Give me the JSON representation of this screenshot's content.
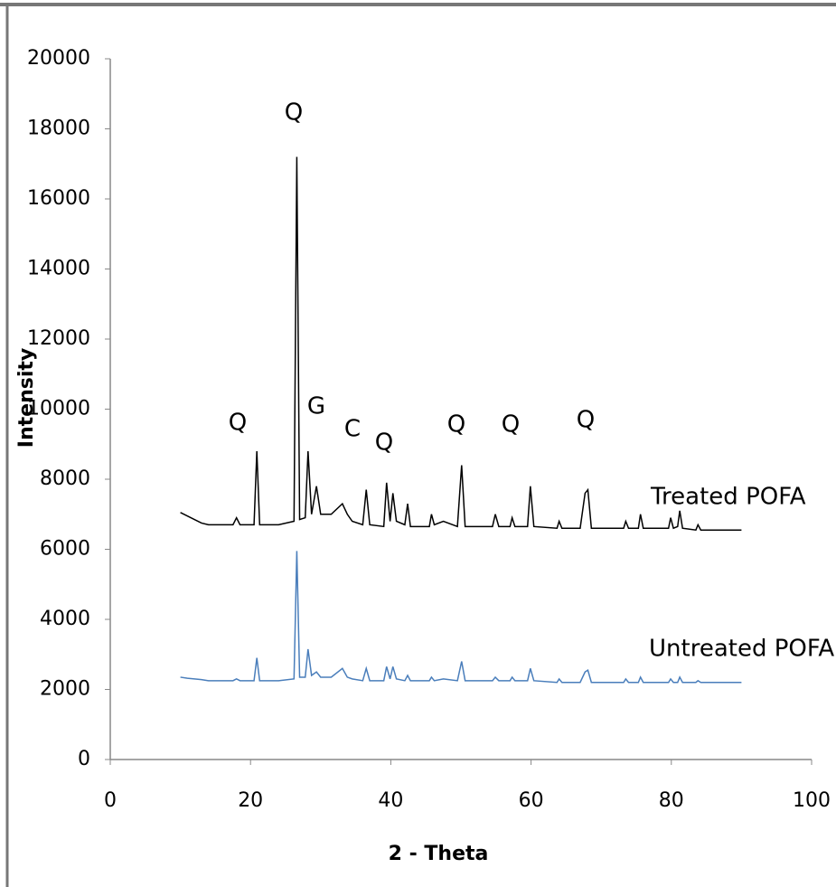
{
  "chart_data": {
    "type": "line",
    "xlabel": "2 - Theta",
    "ylabel": "Intensity",
    "x": [
      10,
      11,
      12,
      13,
      14,
      16,
      17.5,
      18,
      18.5,
      20.5,
      20.9,
      21.3,
      24,
      26.2,
      26.6,
      27,
      27.8,
      28.2,
      28.7,
      29.4,
      30,
      31.5,
      33.1,
      33.8,
      34.5,
      36,
      36.5,
      37,
      39,
      39.4,
      39.9,
      40.3,
      40.8,
      42,
      42.4,
      42.8,
      45.5,
      45.8,
      46.2,
      47.5,
      49.5,
      50.1,
      50.6,
      54.5,
      54.9,
      55.4,
      57,
      57.3,
      57.7,
      59.5,
      59.9,
      60.4,
      63.7,
      64,
      64.4,
      67,
      67.7,
      68.1,
      68.6,
      73.2,
      73.5,
      73.9,
      75.3,
      75.6,
      76,
      79.6,
      79.9,
      80.3,
      80.9,
      81.2,
      81.6,
      83.5,
      83.8,
      84.2,
      87,
      90
    ],
    "series": [
      {
        "name": "Treated POFA",
        "color": "#000000",
        "values": [
          7050,
          6950,
          6850,
          6750,
          6700,
          6700,
          6700,
          6900,
          6700,
          6700,
          8800,
          6700,
          6700,
          6800,
          17200,
          6850,
          6900,
          8800,
          7000,
          7800,
          7000,
          7000,
          7300,
          7000,
          6800,
          6700,
          7700,
          6700,
          6650,
          7900,
          6800,
          7600,
          6800,
          6700,
          7300,
          6650,
          6650,
          7000,
          6700,
          6800,
          6650,
          8400,
          6650,
          6650,
          7000,
          6650,
          6650,
          6900,
          6650,
          6650,
          7800,
          6650,
          6600,
          6800,
          6600,
          6600,
          7600,
          7700,
          6600,
          6600,
          6800,
          6600,
          6600,
          7000,
          6600,
          6600,
          6900,
          6600,
          6650,
          7100,
          6600,
          6550,
          6700,
          6550,
          6550,
          6550
        ]
      },
      {
        "name": "Untreated POFA",
        "color": "#4a7ebb",
        "values": [
          2350,
          2320,
          2300,
          2280,
          2250,
          2250,
          2250,
          2300,
          2250,
          2250,
          2900,
          2250,
          2250,
          2300,
          5950,
          2350,
          2350,
          3150,
          2400,
          2500,
          2350,
          2350,
          2600,
          2350,
          2300,
          2250,
          2600,
          2250,
          2250,
          2650,
          2300,
          2650,
          2300,
          2250,
          2400,
          2250,
          2250,
          2350,
          2250,
          2300,
          2250,
          2800,
          2250,
          2250,
          2350,
          2250,
          2250,
          2350,
          2250,
          2250,
          2600,
          2250,
          2200,
          2300,
          2200,
          2200,
          2500,
          2550,
          2200,
          2200,
          2300,
          2200,
          2200,
          2350,
          2200,
          2200,
          2300,
          2200,
          2200,
          2350,
          2200,
          2200,
          2250,
          2200,
          2200,
          2200
        ]
      }
    ],
    "annotations": [
      "Q",
      "Q",
      "G",
      "C",
      "Q",
      "Q",
      "Q",
      "Q"
    ],
    "xlim": [
      0,
      100
    ],
    "xticks": [
      0,
      20,
      40,
      60,
      80,
      100
    ],
    "ylim": [
      0,
      20000
    ],
    "yticks": [
      0,
      2000,
      4000,
      6000,
      8000,
      10000,
      12000,
      14000,
      16000,
      18000,
      20000
    ]
  }
}
